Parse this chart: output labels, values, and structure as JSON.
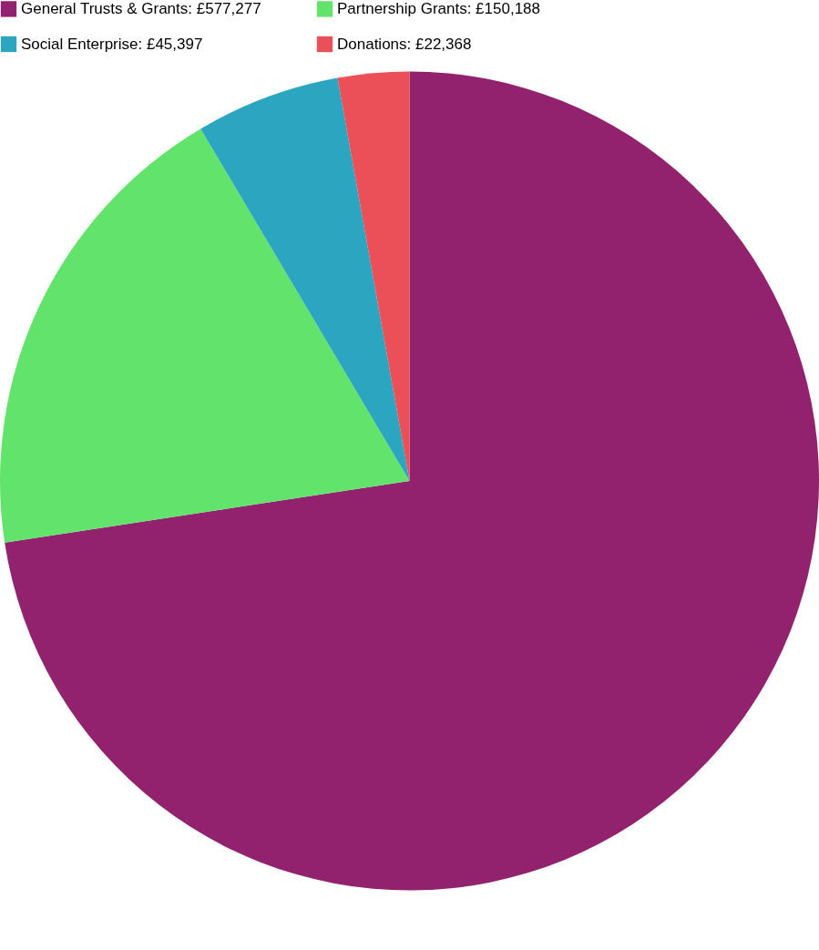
{
  "chart_data": {
    "type": "pie",
    "categories": [
      "General Trusts & Grants: £577,277",
      "Partnership Grants: £150,188",
      "Social Enterprise: £45,397",
      "Donations: £22,368"
    ],
    "values": [
      577277,
      150188,
      45397,
      22368
    ],
    "colors": [
      "#93226e",
      "#62e36c",
      "#2ba5c0",
      "#eb4f58"
    ],
    "legend": "top"
  }
}
